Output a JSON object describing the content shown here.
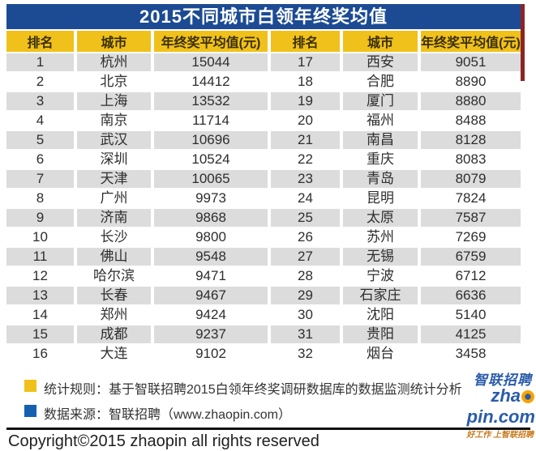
{
  "title": "2015不同城市白领年终奖均值",
  "chart_data": {
    "type": "table",
    "title": "2015不同城市白领年终奖均值",
    "columns": [
      "排名",
      "城市",
      "年终奖平均值(元)"
    ],
    "rows": [
      [
        1,
        "杭州",
        15044
      ],
      [
        2,
        "北京",
        14412
      ],
      [
        3,
        "上海",
        13532
      ],
      [
        4,
        "南京",
        11714
      ],
      [
        5,
        "武汉",
        10696
      ],
      [
        6,
        "深圳",
        10524
      ],
      [
        7,
        "天津",
        10065
      ],
      [
        8,
        "广州",
        9973
      ],
      [
        9,
        "济南",
        9868
      ],
      [
        10,
        "长沙",
        9800
      ],
      [
        11,
        "佛山",
        9548
      ],
      [
        12,
        "哈尔滨",
        9471
      ],
      [
        13,
        "长春",
        9467
      ],
      [
        14,
        "郑州",
        9424
      ],
      [
        15,
        "成都",
        9237
      ],
      [
        16,
        "大连",
        9102
      ],
      [
        17,
        "西安",
        9051
      ],
      [
        18,
        "合肥",
        8890
      ],
      [
        19,
        "厦门",
        8880
      ],
      [
        20,
        "福州",
        8488
      ],
      [
        21,
        "南昌",
        8128
      ],
      [
        22,
        "重庆",
        8083
      ],
      [
        23,
        "青岛",
        8079
      ],
      [
        24,
        "昆明",
        7824
      ],
      [
        25,
        "太原",
        7587
      ],
      [
        26,
        "苏州",
        7269
      ],
      [
        27,
        "无锡",
        6759
      ],
      [
        28,
        "宁波",
        6712
      ],
      [
        29,
        "石家庄",
        6636
      ],
      [
        30,
        "沈阳",
        5140
      ],
      [
        31,
        "贵阳",
        4125
      ],
      [
        32,
        "烟台",
        3458
      ]
    ],
    "layout": "split table: ranks 1-16 in left half, ranks 17-32 in right half"
  },
  "table": {
    "headers": [
      "排名",
      "城市",
      "年终奖平均值(元)",
      "排名",
      "城市",
      "年终奖平均值(元)"
    ]
  },
  "notes": [
    {
      "bullet": "yellow-square",
      "bullet_color": "#f0c11b",
      "text": "统计规则：基于智联招聘2015白领年终奖调研数据库的数据监测统计分析"
    },
    {
      "bullet": "blue-square",
      "bullet_color": "#1660b2",
      "text": "数据来源：智联招聘（www.zhaopin.com）"
    }
  ],
  "logo": {
    "name": "智联招聘",
    "domain_prefix": "zha",
    "domain_suffix": "pin.com",
    "o_icon": "orange-circle-with-blue-dot",
    "tagline": "好工作 上智联招聘"
  },
  "copyright": "Copyright©2015 zhaopin all rights reserved",
  "colors": {
    "title_bar_blue": "#1c4b94",
    "header_gold": "#f0c11b",
    "row_alt_gray": "#dcdcdc",
    "red_edge_strip": "#8b2525",
    "logo_blue": "#2a5caa",
    "logo_orange": "#f8a300",
    "tagline_orange": "#c9781a"
  }
}
